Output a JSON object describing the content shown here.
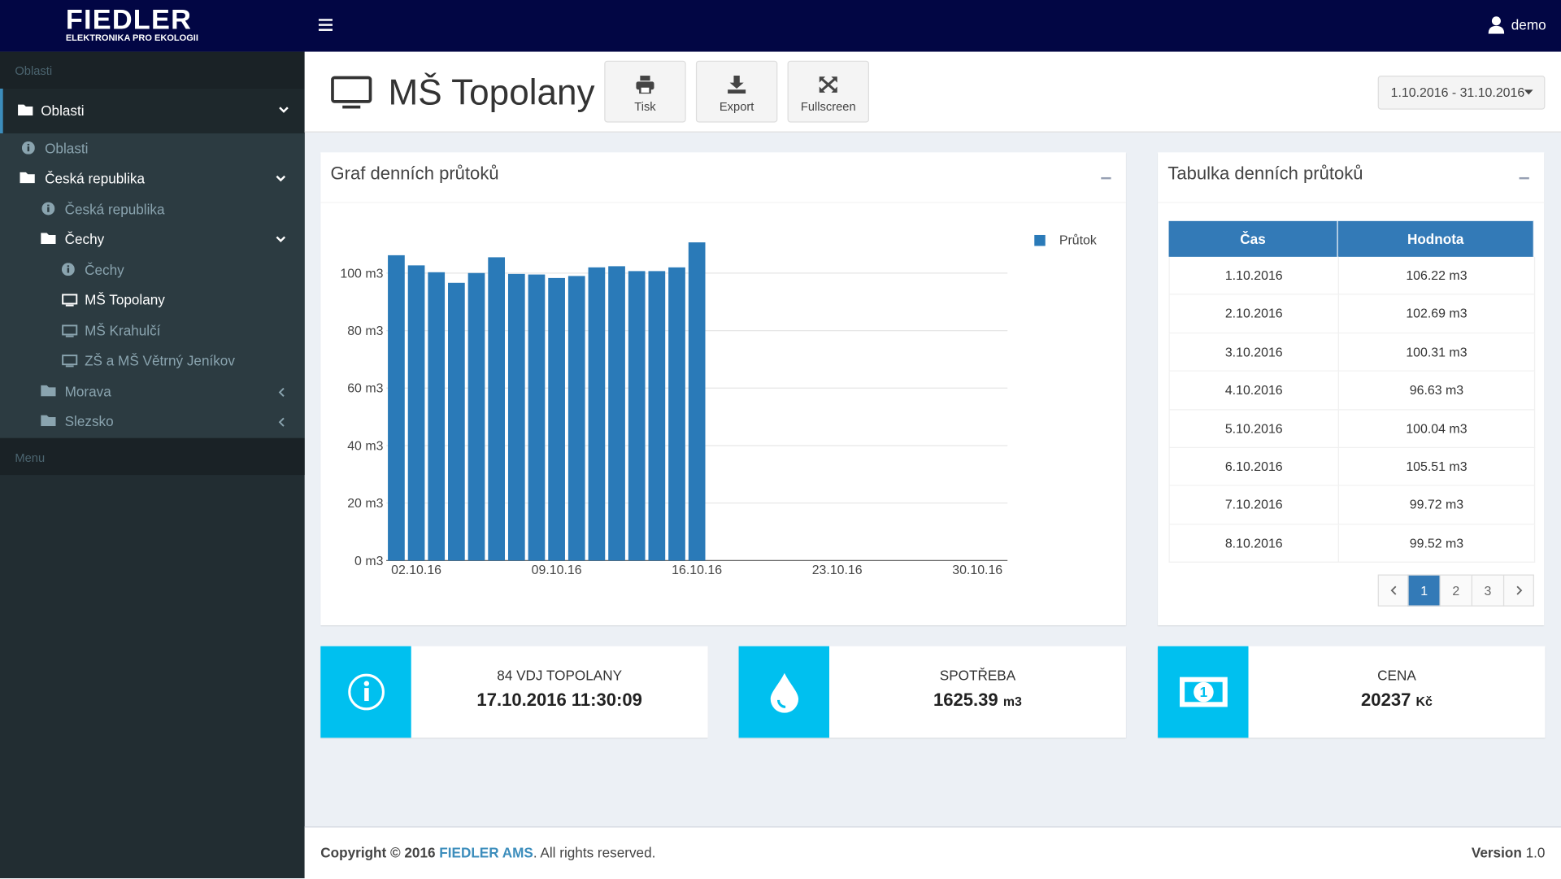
{
  "header": {
    "logo": "FIEDLER",
    "logo_subtitle": "ELEKTRONIKA PRO EKOLOGII",
    "user": "demo"
  },
  "sidebar": {
    "section_title": "Oblasti",
    "items": [
      "Oblasti",
      "Oblasti",
      "Česká republika",
      "Česká republika",
      "Čechy",
      "Čechy",
      "MŠ Topolany",
      "MŠ Krahulčí",
      "ZŠ a MŠ Větrný Jeníkov",
      "Morava",
      "Slezsko"
    ],
    "menu_title": "Menu"
  },
  "toolbar": {
    "page_title": "MŠ Topolany",
    "buttons": [
      "Tisk",
      "Export",
      "Fullscreen"
    ],
    "date_range": "1.10.2016 - 31.10.2016"
  },
  "chart_data": {
    "type": "bar",
    "title": "Graf denních průtoků",
    "categories": [
      null,
      "02.10.16",
      null,
      null,
      null,
      null,
      null,
      null,
      "09.10.16",
      null,
      null,
      null,
      null,
      null,
      null,
      "16.10.16",
      null,
      null,
      null,
      null,
      null,
      null,
      "23.10.16",
      null,
      null,
      null,
      null,
      null,
      null,
      "30.10.16",
      null
    ],
    "series": [
      {
        "name": "Průtok",
        "color": "#2a7ab8",
        "values": [
          106.22,
          102.69,
          100.31,
          96.63,
          100.04,
          105.51,
          99.72,
          99.52,
          98.3,
          99,
          102,
          102.4,
          100.7,
          100.7,
          102,
          110.7,
          null,
          null,
          null,
          null,
          null,
          null,
          null,
          null,
          null,
          null,
          null,
          null,
          null,
          null,
          null
        ]
      }
    ],
    "ylim": [
      0,
      115
    ],
    "yticks": [
      {
        "value": 0,
        "label": "0 m3"
      },
      {
        "value": 20,
        "label": "20 m3"
      },
      {
        "value": 40,
        "label": "40 m3"
      },
      {
        "value": 60,
        "label": "60 m3"
      },
      {
        "value": 80,
        "label": "80 m3"
      },
      {
        "value": 100,
        "label": "100 m3"
      }
    ],
    "grid": true,
    "legend": "top-right"
  },
  "table": {
    "title": "Tabulka denních průtoků",
    "columns": [
      "Čas",
      "Hodnota"
    ],
    "rows": [
      [
        "1.10.2016",
        "106.22 m3"
      ],
      [
        "2.10.2016",
        "102.69 m3"
      ],
      [
        "3.10.2016",
        "100.31 m3"
      ],
      [
        "4.10.2016",
        "96.63 m3"
      ],
      [
        "5.10.2016",
        "100.04 m3"
      ],
      [
        "6.10.2016",
        "105.51 m3"
      ],
      [
        "7.10.2016",
        "99.72 m3"
      ],
      [
        "8.10.2016",
        "99.52 m3"
      ]
    ],
    "pages": [
      "1",
      "2",
      "3"
    ]
  },
  "info_boxes": [
    {
      "label": "84 VDJ TOPOLANY",
      "value": "17.10.2016 11:30:09"
    },
    {
      "label": "SPOTŘEBA",
      "value": "1625.39",
      "unit": "m3"
    },
    {
      "label": "CENA",
      "value": "20237",
      "unit": "Kč"
    }
  ],
  "footer": {
    "copyright": "Copyright © 2016",
    "company": "FIEDLER AMS",
    "rights": ". All rights reserved.",
    "version_label": "Version",
    "version": "1.0"
  }
}
